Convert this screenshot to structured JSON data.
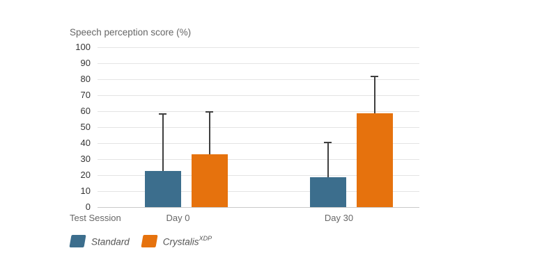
{
  "chart_data": {
    "type": "bar",
    "title": "Speech perception score (%)",
    "xlabel": "Test Session",
    "categories": [
      "Day 0",
      "Day 30"
    ],
    "series": [
      {
        "name": "Standard",
        "label_text": "Standard",
        "label_superscript": "",
        "color": "#3C6E8D",
        "values": [
          22.5,
          18.5
        ],
        "error_upper": [
          58.5,
          41
        ]
      },
      {
        "name": "Crystalis XDP",
        "label_text": "Crystalis",
        "label_superscript": "XDP",
        "color": "#E6720D",
        "values": [
          33,
          58.5
        ],
        "error_upper": [
          60,
          82
        ]
      }
    ],
    "ylim": [
      0,
      100
    ],
    "ytick_step": 10,
    "grid": true,
    "legend_position": "bottom-left",
    "error_bar_color": "#3F3F3F"
  },
  "colors": {
    "grid": "#e4e4e4",
    "axis_line": "#c9c9c9",
    "title_text": "#666666",
    "tick_text": "#333333",
    "category_text": "#666666",
    "legend_text": "#555555"
  }
}
